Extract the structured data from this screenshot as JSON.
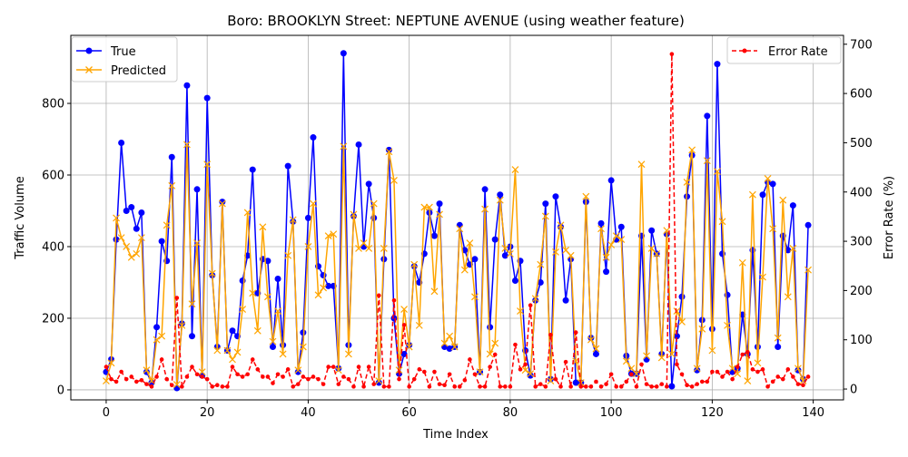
{
  "chart_data": {
    "type": "line",
    "title": "Boro: BROOKLYN Street: NEPTUNE AVENUE (using weather feature)",
    "xlabel": "Time Index",
    "ylabel": "Traffic Volume",
    "y2label": "Error Rate (%)",
    "xlim": [
      -7,
      146
    ],
    "ylim": [
      -28,
      990
    ],
    "y2lim": [
      -22,
      718
    ],
    "xticks": [
      0,
      20,
      40,
      60,
      80,
      100,
      120,
      140
    ],
    "yticks": [
      0,
      200,
      400,
      600,
      800
    ],
    "y2ticks": [
      0,
      100,
      200,
      300,
      400,
      500,
      600,
      700
    ],
    "grid": true,
    "legend_left": {
      "position": "upper-left",
      "entries": [
        "True",
        "Predicted"
      ]
    },
    "legend_right": {
      "position": "upper-right",
      "entries": [
        "Error Rate"
      ]
    },
    "colors": {
      "true": "#0000ff",
      "predicted": "#ffa500",
      "error": "#ff0000"
    },
    "series": [
      {
        "name": "True",
        "axis": "left",
        "values": [
          50,
          85,
          420,
          690,
          500,
          510,
          450,
          495,
          50,
          20,
          175,
          415,
          360,
          650,
          5,
          185,
          850,
          150,
          560,
          40,
          815,
          320,
          120,
          525,
          110,
          165,
          150,
          305,
          375,
          615,
          270,
          365,
          360,
          120,
          310,
          125,
          625,
          470,
          50,
          160,
          480,
          705,
          345,
          320,
          290,
          290,
          60,
          940,
          125,
          485,
          685,
          400,
          575,
          480,
          20,
          365,
          670,
          200,
          45,
          100,
          125,
          345,
          300,
          380,
          495,
          430,
          520,
          120,
          115,
          120,
          460,
          390,
          350,
          365,
          50,
          560,
          175,
          420,
          545,
          375,
          400,
          305,
          360,
          110,
          40,
          250,
          300,
          520,
          30,
          540,
          455,
          250,
          365,
          20,
          20,
          525,
          145,
          100,
          465,
          330,
          585,
          420,
          455,
          95,
          45,
          45,
          430,
          85,
          445,
          380,
          100,
          435,
          10,
          150,
          260,
          540,
          655,
          55,
          195,
          765,
          170,
          910,
          380,
          265,
          50,
          60,
          210,
          100,
          390,
          120,
          545,
          580,
          575,
          120,
          430,
          390,
          515,
          55,
          30,
          460
        ]
      },
      {
        "name": "Predicted",
        "axis": "left",
        "values": [
          25,
          75,
          480,
          425,
          400,
          370,
          380,
          425,
          55,
          25,
          140,
          150,
          460,
          570,
          15,
          180,
          685,
          240,
          410,
          50,
          630,
          325,
          110,
          520,
          110,
          85,
          105,
          225,
          495,
          270,
          165,
          455,
          260,
          135,
          220,
          100,
          375,
          475,
          55,
          120,
          400,
          520,
          265,
          285,
          430,
          435,
          55,
          680,
          100,
          490,
          395,
          410,
          395,
          520,
          25,
          395,
          665,
          585,
          55,
          225,
          120,
          350,
          180,
          510,
          510,
          275,
          490,
          130,
          150,
          120,
          450,
          335,
          410,
          260,
          50,
          505,
          100,
          130,
          530,
          395,
          380,
          615,
          220,
          55,
          45,
          255,
          350,
          485,
          25,
          385,
          460,
          390,
          375,
          80,
          20,
          540,
          140,
          115,
          450,
          370,
          405,
          430,
          420,
          80,
          60,
          45,
          630,
          95,
          395,
          380,
          90,
          445,
          100,
          220,
          190,
          580,
          670,
          60,
          170,
          640,
          110,
          610,
          470,
          180,
          60,
          45,
          355,
          25,
          545,
          75,
          315,
          590,
          450,
          145,
          530,
          260,
          395,
          60,
          25,
          335
        ]
      },
      {
        "name": "Error Rate",
        "axis": "right",
        "values": [
          45,
          20,
          15,
          35,
          20,
          25,
          15,
          18,
          10,
          5,
          25,
          60,
          20,
          8,
          185,
          5,
          25,
          45,
          30,
          25,
          20,
          5,
          8,
          5,
          5,
          45,
          30,
          25,
          30,
          60,
          40,
          25,
          25,
          12,
          30,
          25,
          40,
          5,
          10,
          25,
          20,
          25,
          20,
          10,
          45,
          45,
          10,
          25,
          20,
          5,
          45,
          5,
          45,
          10,
          190,
          5,
          5,
          180,
          20,
          130,
          5,
          20,
          40,
          35,
          5,
          35,
          10,
          8,
          30,
          5,
          5,
          18,
          60,
          30,
          5,
          5,
          45,
          70,
          5,
          5,
          5,
          90,
          40,
          50,
          170,
          5,
          10,
          5,
          110,
          20,
          5,
          55,
          5,
          115,
          5,
          5,
          5,
          15,
          5,
          10,
          30,
          5,
          5,
          15,
          30,
          5,
          50,
          10,
          5,
          5,
          10,
          5,
          680,
          50,
          30,
          8,
          5,
          10,
          15,
          15,
          35,
          35,
          25,
          35,
          20,
          45,
          70,
          75,
          40,
          35,
          40,
          5,
          15,
          25,
          20,
          40,
          25,
          10,
          8,
          25
        ]
      }
    ]
  }
}
